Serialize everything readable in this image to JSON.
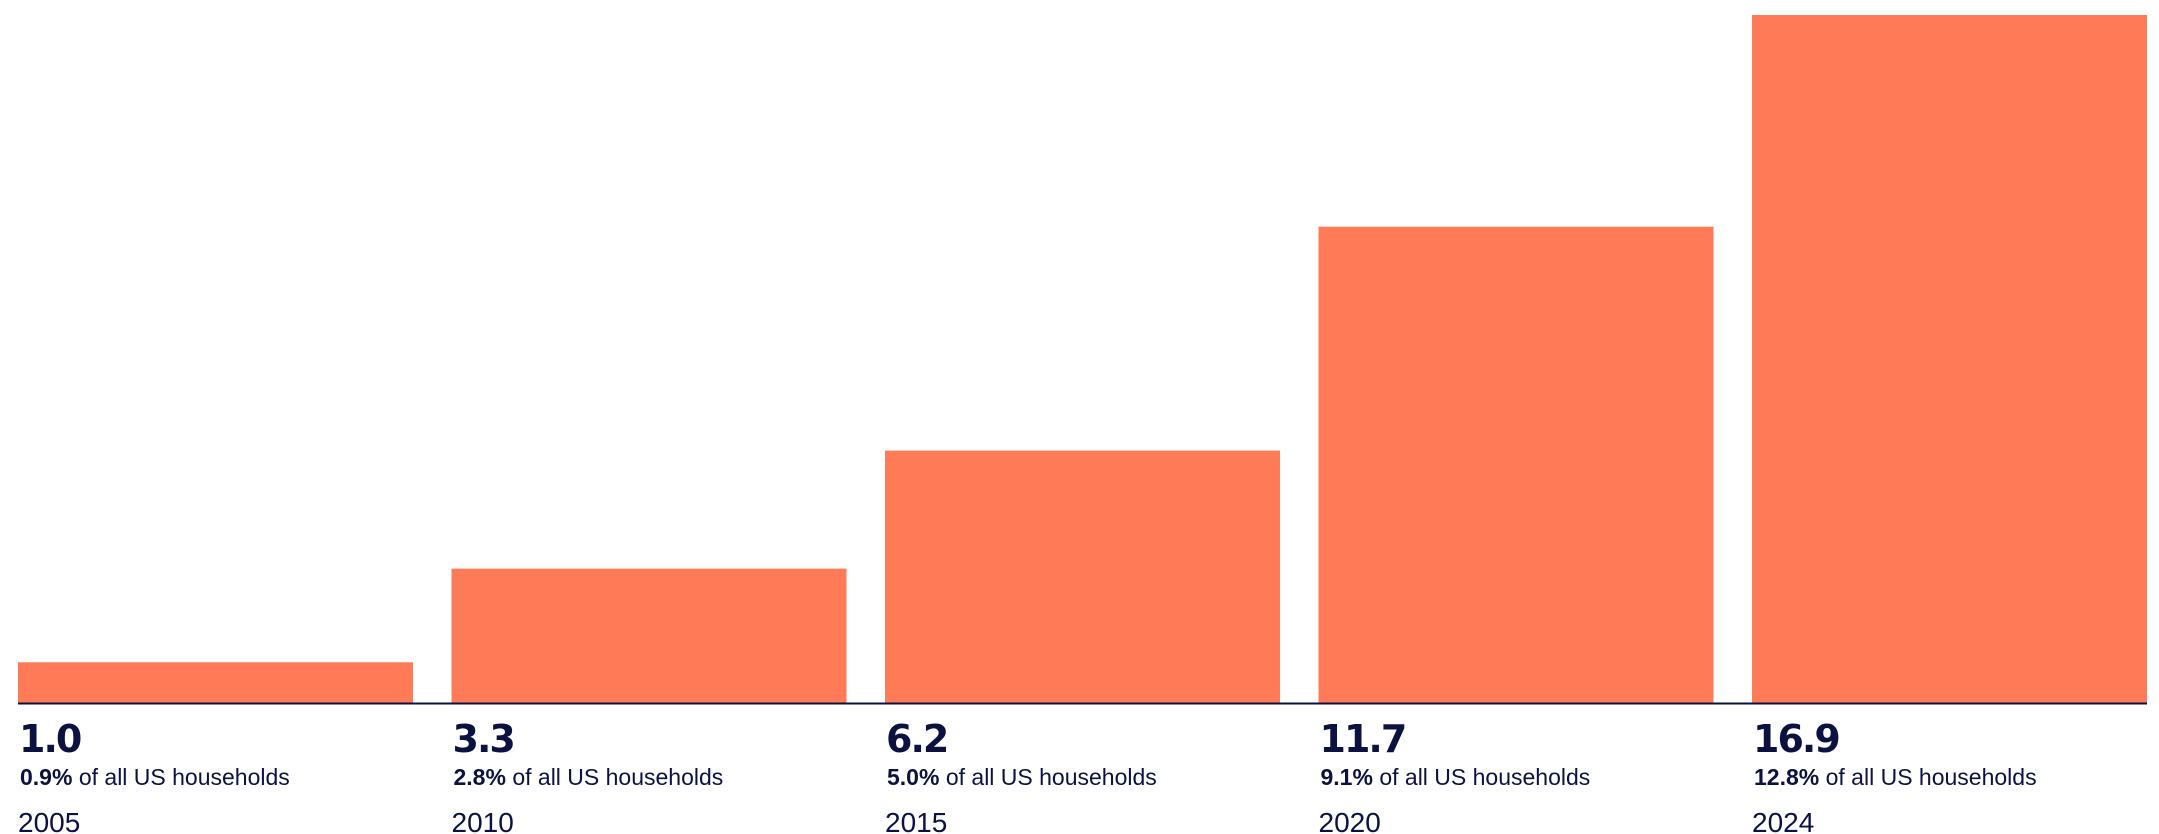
{
  "chart_data": {
    "type": "bar",
    "categories": [
      "2005",
      "2010",
      "2015",
      "2020",
      "2024"
    ],
    "values": [
      1.0,
      3.3,
      6.2,
      11.7,
      16.9
    ],
    "value_labels": [
      "1.0",
      "3.3",
      "6.2",
      "11.7",
      "16.9"
    ],
    "share_labels": [
      "0.9%",
      "2.8%",
      "5.0%",
      "9.1%",
      "12.8%"
    ],
    "share_suffix": " of all US households",
    "ylim": [
      0,
      16.9
    ],
    "grid": false,
    "colors": {
      "bar": "#ff7a57",
      "text": "#0c1240",
      "baseline": "#0c1240"
    }
  }
}
